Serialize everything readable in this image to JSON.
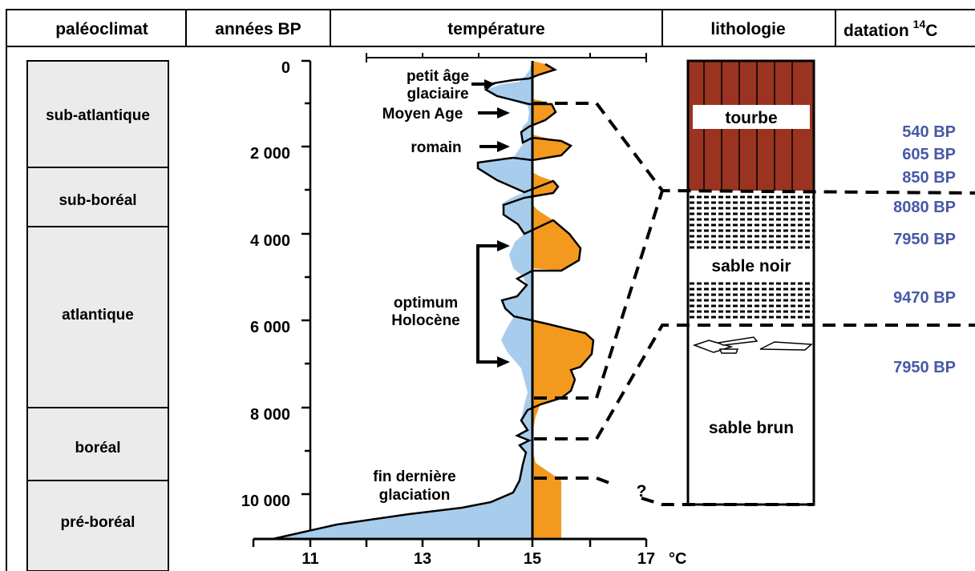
{
  "headers": {
    "paleoclimat": "paléoclimat",
    "annees": "années BP",
    "temperature": "température",
    "lithologie": "lithologie",
    "datation": "datation",
    "datation_sup": "14",
    "datation_c": "C"
  },
  "periods": [
    "sub-atlantique",
    "sub-boréal",
    "atlantique",
    "boréal",
    "pré-boréal"
  ],
  "age_ticks": [
    "0",
    "2 000",
    "4 000",
    "6 000",
    "8 000",
    "10 000"
  ],
  "temp_ticks": [
    "11",
    "13",
    "15",
    "17"
  ],
  "temp_unit": "°C",
  "annotations": {
    "petit_age_1": "petit âge",
    "petit_age_2": "glaciaire",
    "moyen_age": "Moyen Age",
    "romain": "romain",
    "optimum_1": "optimum",
    "optimum_2": "Holocène",
    "fin_1": "fin dernière",
    "fin_2": "glaciation",
    "question": "?"
  },
  "lithology": {
    "tourbe": "tourbe",
    "sable_noir": "sable noir",
    "sable_brun": "sable brun"
  },
  "dates": [
    "540 BP",
    "605 BP",
    "850 BP",
    "8080 BP",
    "7950 BP",
    "9470 BP",
    "7950 BP"
  ],
  "colors": {
    "warm": "#f39a1e",
    "cold": "#a8cdec",
    "peat": "#9a3420",
    "period_fill": "#ebebeb",
    "date_text": "#4659a6"
  }
}
